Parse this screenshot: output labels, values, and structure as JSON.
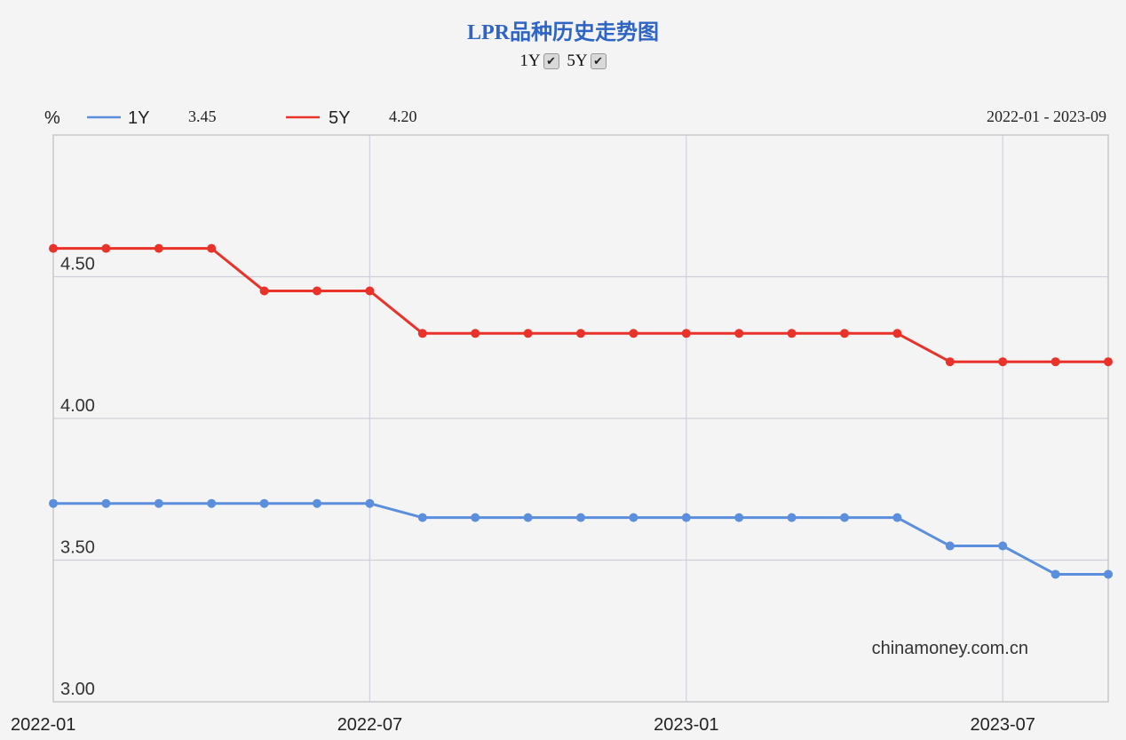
{
  "header": {
    "title": "LPR品种历史走势图",
    "toggles": [
      {
        "label": "1Y",
        "checked": true,
        "check_icon": "✔"
      },
      {
        "label": "5Y",
        "checked": true,
        "check_icon": "✔"
      }
    ]
  },
  "legend": {
    "unit": "%",
    "range_text": "2022-01 - 2023-09",
    "entries": [
      {
        "name": "1Y",
        "latest": "3.45",
        "color": "#5b8fde"
      },
      {
        "name": "5Y",
        "latest": "4.20",
        "color": "#e8322a"
      }
    ]
  },
  "watermark": "chinamoney.com.cn",
  "chart_data": {
    "type": "line",
    "title": "LPR品种历史走势图",
    "ylabel": "%",
    "xlabel": "",
    "ylim": [
      3.0,
      5.0
    ],
    "yticks": [
      3.0,
      3.5,
      4.0,
      4.5
    ],
    "ytick_labels": [
      "3.00",
      "3.50",
      "4.00",
      "4.50"
    ],
    "x": [
      "2022-01",
      "2022-02",
      "2022-03",
      "2022-04",
      "2022-05",
      "2022-06",
      "2022-07",
      "2022-08",
      "2022-09",
      "2022-10",
      "2022-11",
      "2022-12",
      "2023-01",
      "2023-02",
      "2023-03",
      "2023-04",
      "2023-05",
      "2023-06",
      "2023-07",
      "2023-08",
      "2023-09"
    ],
    "xtick_labels": [
      "2022-01",
      "2022-07",
      "2023-01",
      "2023-07"
    ],
    "grid": true,
    "legend_position": "top-left",
    "series": [
      {
        "name": "1Y",
        "color": "#5b8fde",
        "values": [
          3.7,
          3.7,
          3.7,
          3.7,
          3.7,
          3.7,
          3.7,
          3.65,
          3.65,
          3.65,
          3.65,
          3.65,
          3.65,
          3.65,
          3.65,
          3.65,
          3.65,
          3.55,
          3.55,
          3.45,
          3.45
        ]
      },
      {
        "name": "5Y",
        "color": "#e8322a",
        "values": [
          4.6,
          4.6,
          4.6,
          4.6,
          4.45,
          4.45,
          4.45,
          4.3,
          4.3,
          4.3,
          4.3,
          4.3,
          4.3,
          4.3,
          4.3,
          4.3,
          4.3,
          4.2,
          4.2,
          4.2,
          4.2
        ]
      }
    ]
  }
}
